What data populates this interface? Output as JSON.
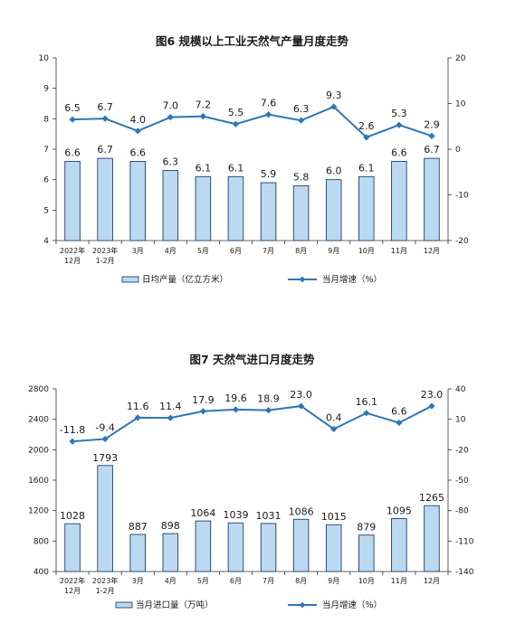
{
  "colors": {
    "bar_fill": "#bcd9f2",
    "bar_stroke": "#1f3f66",
    "line": "#2e75b6",
    "axis": "#333333"
  },
  "chart_data": [
    {
      "type": "bar",
      "title": "图6 规模以上工业天然气产量月度走势",
      "categories": [
        "2022年|12月",
        "2023年|1-2月",
        "3月",
        "4月",
        "5月",
        "6月",
        "7月",
        "8月",
        "9月",
        "10月",
        "11月",
        "12月"
      ],
      "series": [
        {
          "name": "日均产量（亿立方米）",
          "type": "bar",
          "axis": "left",
          "values": [
            6.6,
            6.7,
            6.6,
            6.3,
            6.1,
            6.1,
            5.9,
            5.8,
            6.0,
            6.1,
            6.6,
            6.7
          ]
        },
        {
          "name": "当月增速（%）",
          "type": "line",
          "axis": "right",
          "values": [
            6.5,
            6.7,
            4.0,
            7.0,
            7.2,
            5.5,
            7.6,
            6.3,
            9.3,
            2.6,
            5.3,
            2.9
          ]
        }
      ],
      "yleft": {
        "min": 4,
        "max": 10,
        "ticks": [
          "4",
          "5",
          "6",
          "7",
          "8",
          "9",
          "10"
        ]
      },
      "yright": {
        "min": -20,
        "max": 20,
        "ticks": [
          "-20",
          "-10",
          "0",
          "10",
          "20"
        ]
      },
      "legend_position": "bottom"
    },
    {
      "type": "bar",
      "title": "图7 天然气进口月度走势",
      "categories": [
        "2022年|12月",
        "2023年|1-2月",
        "3月",
        "4月",
        "5月",
        "6月",
        "7月",
        "8月",
        "9月",
        "10月",
        "11月",
        "12月"
      ],
      "series": [
        {
          "name": "当月进口量（万吨）",
          "type": "bar",
          "axis": "left",
          "values": [
            1028,
            1793,
            887,
            898,
            1064,
            1039,
            1031,
            1086,
            1015,
            879,
            1095,
            1265
          ]
        },
        {
          "name": "当月增速（%）",
          "type": "line",
          "axis": "right",
          "values": [
            -11.8,
            -9.4,
            11.6,
            11.4,
            17.9,
            19.6,
            18.9,
            23.0,
            0.4,
            16.1,
            6.6,
            23.0
          ]
        }
      ],
      "yleft": {
        "min": 400,
        "max": 2800,
        "ticks": [
          "400",
          "800",
          "1200",
          "1600",
          "2000",
          "2400",
          "2800"
        ]
      },
      "yright": {
        "min": -140,
        "max": 40,
        "ticks": [
          "-140",
          "-110",
          "-80",
          "-50",
          "-20",
          "10",
          "40"
        ]
      },
      "legend_position": "bottom"
    }
  ]
}
